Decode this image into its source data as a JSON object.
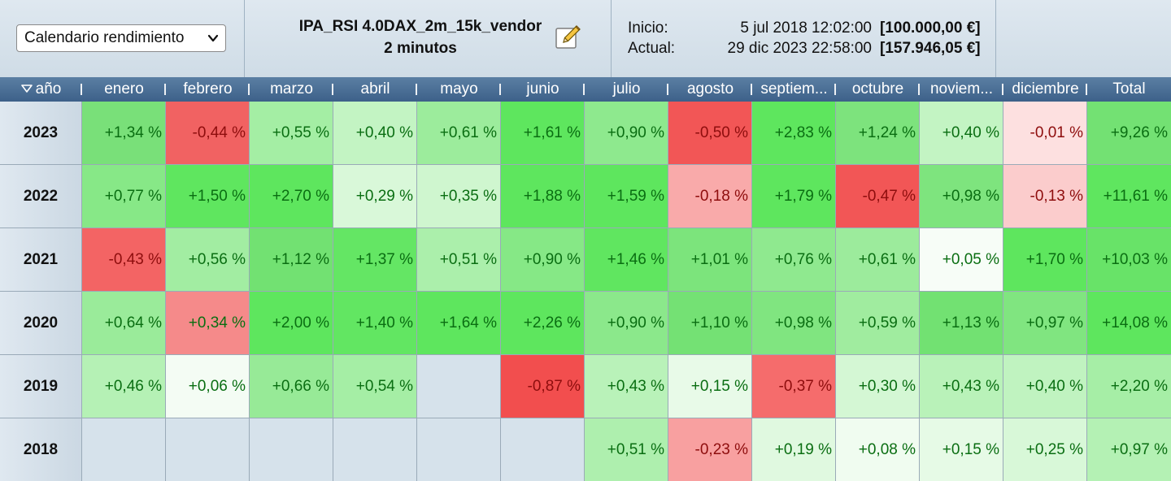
{
  "toolbar": {
    "view_select": "Calendario rendimiento",
    "strategy_name": "IPA_RSI 4.0DAX_2m_15k_vendor",
    "timeframe": "2 minutos",
    "start_label": "Inicio:",
    "start_date": "5 jul 2018 12:02:00",
    "start_amount": "[100.000,00 €]",
    "current_label": "Actual:",
    "current_date": "29 dic 2023 22:58:00",
    "current_amount": "[157.946,05 €]"
  },
  "header": {
    "year_label": "año",
    "months": [
      "enero",
      "febrero",
      "marzo",
      "abril",
      "mayo",
      "junio",
      "julio",
      "agosto",
      "septiem...",
      "octubre",
      "noviem...",
      "diciembre",
      "Total"
    ]
  },
  "colors": {
    "header_bg": "#4a6f97",
    "positive_text": "#0a6e12",
    "negative_text": "#8e0d0d",
    "empty_cell": "#d6e2eb"
  },
  "rows": [
    {
      "year": "2023",
      "values": [
        "+1,34 %",
        "-0,44 %",
        "+0,55 %",
        "+0,40 %",
        "+0,61 %",
        "+1,61 %",
        "+0,90 %",
        "-0,50 %",
        "+2,83 %",
        "+1,24 %",
        "+0,40 %",
        "-0,01 %",
        "+9,26 %"
      ],
      "bg": [
        "#79e079",
        "#f16262",
        "#a4eea4",
        "#c3f4c3",
        "#9cec9c",
        "#5ee65e",
        "#8ee98e",
        "#f25656",
        "#5ee65e",
        "#7de37d",
        "#c3f4c3",
        "#fde0e0",
        "#73e173"
      ]
    },
    {
      "year": "2022",
      "values": [
        "+0,77 %",
        "+1,50 %",
        "+2,70 %",
        "+0,29 %",
        "+0,35 %",
        "+1,88 %",
        "+1,59 %",
        "-0,18 %",
        "+1,79 %",
        "-0,47 %",
        "+0,98 %",
        "-0,13 %",
        "+11,61 %"
      ],
      "bg": [
        "#87e887",
        "#5fe65f",
        "#5ee65e",
        "#d9f8d9",
        "#cff6cf",
        "#5ee65e",
        "#5ee65e",
        "#f9aaaa",
        "#5ee65e",
        "#f25656",
        "#7ee47e",
        "#fbcccc",
        "#5fe65f"
      ]
    },
    {
      "year": "2021",
      "values": [
        "-0,43 %",
        "+0,56 %",
        "+1,12 %",
        "+1,37 %",
        "+0,51 %",
        "+0,90 %",
        "+1,46 %",
        "+1,01 %",
        "+0,76 %",
        "+0,61 %",
        "+0,05 %",
        "+1,70 %",
        "+10,03 %"
      ],
      "bg": [
        "#f36464",
        "#a2eda2",
        "#72e172",
        "#64e664",
        "#abefab",
        "#86e886",
        "#60e660",
        "#7ce47c",
        "#8fe98f",
        "#9ceb9c",
        "#f7fdf7",
        "#5ee65e",
        "#68e368"
      ]
    },
    {
      "year": "2020",
      "values": [
        "+0,64 %",
        "+0,34 %",
        "+2,00 %",
        "+1,40 %",
        "+1,64 %",
        "+2,26 %",
        "+0,90 %",
        "+1,10 %",
        "+0,98 %",
        "+0,59 %",
        "+1,13 %",
        "+0,97 %",
        "+14,08 %"
      ],
      "bg": [
        "#9aeb9a",
        "#f58a8a",
        "#5ee65e",
        "#62e662",
        "#5ee65e",
        "#5ee65e",
        "#8be88b",
        "#74e174",
        "#80e580",
        "#a0ec9f",
        "#72e172",
        "#80e580",
        "#5ee65e"
      ]
    },
    {
      "year": "2019",
      "values": [
        "+0,46 %",
        "+0,06 %",
        "+0,66 %",
        "+0,54 %",
        "",
        "-0,87 %",
        "+0,43 %",
        "+0,15 %",
        "-0,37 %",
        "+0,30 %",
        "+0,43 %",
        "+0,40 %",
        "+2,20 %"
      ],
      "bg": [
        "#b5f1b5",
        "#f4fcf4",
        "#97ea97",
        "#a5eea5",
        "empty",
        "#f24e4e",
        "#b9f2b9",
        "#e8fae8",
        "#f56c6c",
        "#d4f7d4",
        "#b9f2b9",
        "#c0f3c0",
        "#a6eea6"
      ]
    },
    {
      "year": "2018",
      "values": [
        "",
        "",
        "",
        "",
        "",
        "",
        "+0,51 %",
        "-0,23 %",
        "+0,19 %",
        "+0,08 %",
        "+0,15 %",
        "+0,25 %",
        "+0,97 %"
      ],
      "bg": [
        "empty",
        "empty",
        "empty",
        "empty",
        "empty",
        "empty",
        "#aeefae",
        "#f8a0a0",
        "#e0f9e0",
        "#f0fcf0",
        "#e6fae6",
        "#d8f8d8",
        "#b4f1b4"
      ]
    }
  ]
}
